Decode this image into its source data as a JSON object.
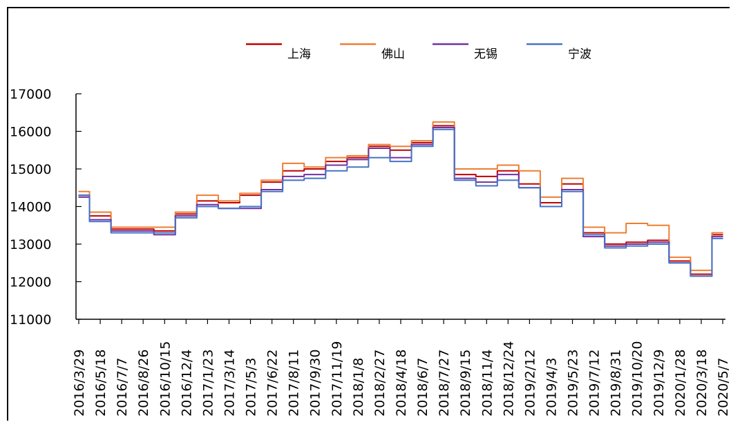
{
  "chart_data": {
    "type": "line",
    "title": "",
    "xlabel": "",
    "ylabel": "",
    "ylim": [
      11000,
      17000
    ],
    "yticks": [
      11000,
      12000,
      13000,
      14000,
      15000,
      16000,
      17000
    ],
    "ytick_labels": [
      "11000",
      "12000",
      "13000",
      "14000",
      "15000",
      "16000",
      "17000"
    ],
    "grid": false,
    "legend_position": "top",
    "xtick_labels": [
      "2016/3/29",
      "2016/5/18",
      "2016/7/7",
      "2016/8/26",
      "2016/10/15",
      "2016/12/4",
      "2017/1/23",
      "2017/3/14",
      "2017/5/3",
      "2017/6/22",
      "2017/8/11",
      "2017/9/30",
      "2017/11/19",
      "2018/1/8",
      "2018/2/27",
      "2018/4/18",
      "2018/6/7",
      "2018/7/27",
      "2018/9/15",
      "2018/11/4",
      "2018/12/24",
      "2019/2/12",
      "2019/4/3",
      "2019/5/23",
      "2019/7/12",
      "2019/8/31",
      "2019/10/20",
      "2019/12/9",
      "2020/1/28",
      "2020/3/18",
      "2020/5/7"
    ],
    "x": [
      "2016/3/29",
      "2016/5/18",
      "2016/7/7",
      "2016/8/26",
      "2016/10/15",
      "2016/12/4",
      "2017/1/23",
      "2017/3/14",
      "2017/5/3",
      "2017/6/22",
      "2017/8/11",
      "2017/9/30",
      "2017/11/19",
      "2018/1/8",
      "2018/2/27",
      "2018/4/18",
      "2018/6/7",
      "2018/7/27",
      "2018/9/15",
      "2018/11/4",
      "2018/12/24",
      "2019/2/12",
      "2019/4/3",
      "2019/5/23",
      "2019/7/12",
      "2019/8/31",
      "2019/10/20",
      "2019/12/9",
      "2020/1/28",
      "2020/3/18",
      "2020/5/7"
    ],
    "series": [
      {
        "name": "上海",
        "color": "#c00000",
        "values": [
          14300,
          13750,
          13400,
          13400,
          13350,
          13800,
          14150,
          14100,
          14300,
          14650,
          14950,
          15000,
          15200,
          15300,
          15600,
          15500,
          15700,
          16150,
          14850,
          14800,
          14950,
          14600,
          14100,
          14600,
          13300,
          13000,
          13050,
          13100,
          12550,
          12200,
          13250
        ]
      },
      {
        "name": "佛山",
        "color": "#ed7d31",
        "values": [
          14400,
          13850,
          13450,
          13450,
          13450,
          13850,
          14300,
          14150,
          14350,
          14700,
          15150,
          15050,
          15300,
          15350,
          15650,
          15600,
          15750,
          16250,
          15000,
          15000,
          15100,
          14950,
          14250,
          14750,
          13450,
          13300,
          13550,
          13500,
          12650,
          12300,
          13300
        ]
      },
      {
        "name": "无锡",
        "color": "#7030a0",
        "values": [
          14250,
          13650,
          13350,
          13350,
          13250,
          13750,
          14050,
          13950,
          13950,
          14450,
          14800,
          14850,
          15100,
          15250,
          15550,
          15300,
          15650,
          16100,
          14750,
          14650,
          14850,
          14500,
          14000,
          14450,
          13200,
          12950,
          13000,
          13050,
          12500,
          12150,
          13200
        ]
      },
      {
        "name": "宁波",
        "color": "#4472c4",
        "values": [
          14300,
          13600,
          13300,
          13300,
          13300,
          13700,
          14000,
          13950,
          14000,
          14400,
          14700,
          14750,
          14950,
          15050,
          15300,
          15200,
          15600,
          16050,
          14700,
          14550,
          14700,
          14500,
          14000,
          14400,
          13250,
          12900,
          12950,
          13000,
          12500,
          12150,
          13150
        ]
      }
    ]
  }
}
